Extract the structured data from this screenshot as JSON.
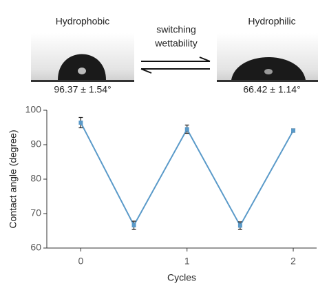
{
  "chart_data": {
    "type": "line",
    "xlabel": "Cycles",
    "ylabel": "Contact angle (degree)",
    "x": [
      0,
      0.5,
      1,
      1.5,
      2
    ],
    "series": [
      {
        "color": "#5a9ac9",
        "values": [
          96.4,
          66.6,
          94.5,
          66.5,
          94.1
        ],
        "errors": [
          1.5,
          1.2,
          1.2,
          1.1,
          0.5
        ]
      }
    ],
    "xlim": [
      -0.32,
      2.22
    ],
    "xticks": [
      0,
      1,
      2
    ],
    "ylim": [
      60,
      100
    ],
    "yticks": [
      60,
      70,
      80,
      90,
      100
    ],
    "annotations": {
      "left_label": "Hydrophobic",
      "left_angle": "96.37 ± 1.54°",
      "right_label": "Hydrophilic",
      "right_angle": "66.42 ± 1.14°",
      "switch_text": [
        "switching",
        "wettability"
      ]
    }
  }
}
